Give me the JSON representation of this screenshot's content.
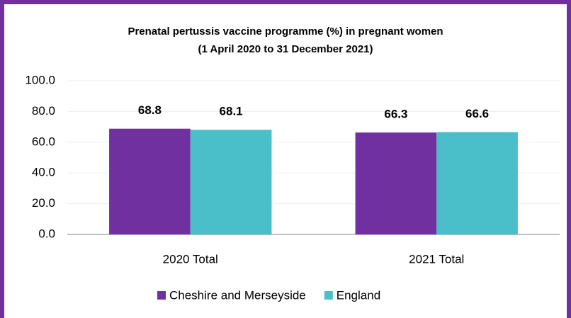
{
  "chart_data": {
    "type": "bar",
    "title": "Prenatal pertussis vaccine programme (%) in pregnant women",
    "subtitle": "(1 April 2020 to 31 December 2021)",
    "categories": [
      "2020 Total",
      "2021 Total"
    ],
    "series": [
      {
        "name": "Cheshire and Merseyside",
        "color": "#7030a0",
        "values": [
          68.8,
          66.3
        ]
      },
      {
        "name": "England",
        "color": "#4bbfc9",
        "values": [
          68.1,
          66.6
        ]
      }
    ],
    "ylim": [
      0,
      100
    ],
    "yticks": [
      {
        "value": 0,
        "label": "0.0"
      },
      {
        "value": 20,
        "label": "20.0"
      },
      {
        "value": 40,
        "label": "40.0"
      },
      {
        "value": 60,
        "label": "60.0"
      },
      {
        "value": 80,
        "label": "80.0"
      },
      {
        "value": 100,
        "label": "100.0"
      }
    ],
    "grid": true,
    "legend": "bottom"
  }
}
